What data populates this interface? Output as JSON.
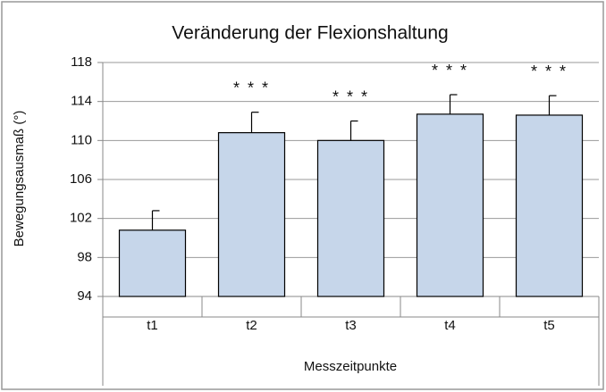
{
  "chart_data": {
    "type": "bar",
    "title": "Veränderung der Flexionshaltung",
    "x_label": "Messzeitpunkte",
    "y_label": "Bewegungsausmaß (°)",
    "categories": [
      "t1",
      "t2",
      "t3",
      "t4",
      "t5"
    ],
    "values": [
      100.8,
      110.8,
      110.0,
      112.7,
      112.6
    ],
    "errors": [
      2.0,
      2.1,
      2.0,
      2.0,
      2.0
    ],
    "annotations": [
      null,
      "* * *",
      "* * *",
      "* * *",
      "* * *"
    ],
    "color": "#c6d6ea",
    "ylim": [
      94,
      118
    ],
    "yticks": [
      94,
      98,
      102,
      106,
      110,
      114,
      118
    ],
    "grid": true
  }
}
